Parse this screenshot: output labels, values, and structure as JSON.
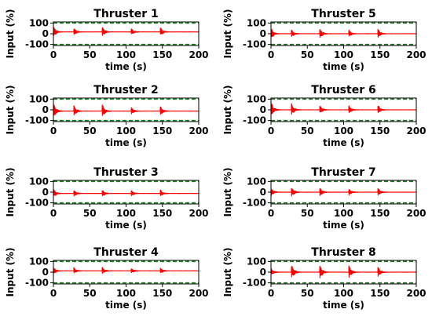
{
  "chart_data": [
    {
      "type": "line",
      "title": "Thruster 1",
      "xlabel": "time (s)",
      "ylabel": "Input (%)",
      "xlim": [
        0,
        200
      ],
      "ylim": [
        -110,
        110
      ],
      "xticks": [
        0,
        50,
        100,
        150,
        200
      ],
      "yticks": [
        100,
        0,
        -100
      ],
      "limits": [
        100,
        -100
      ],
      "baseline": 17,
      "series": [
        {
          "name": "",
          "events": [
            {
              "t": 0,
              "amp": 60
            },
            {
              "t": 28,
              "amp": 45
            },
            {
              "t": 67,
              "amp": 60
            },
            {
              "t": 107,
              "amp": 40
            },
            {
              "t": 147,
              "amp": 50
            }
          ]
        }
      ]
    },
    {
      "type": "line",
      "title": "Thruster 2",
      "xlabel": "time (s)",
      "ylabel": "Input (%)",
      "xlim": [
        0,
        200
      ],
      "ylim": [
        -110,
        110
      ],
      "xticks": [
        0,
        50,
        100,
        150,
        200
      ],
      "yticks": [
        100,
        0,
        -100
      ],
      "limits": [
        100,
        -100
      ],
      "baseline": -12,
      "series": [
        {
          "name": "",
          "events": [
            {
              "t": 0,
              "amp": 85
            },
            {
              "t": 28,
              "amp": 60
            },
            {
              "t": 67,
              "amp": 75
            },
            {
              "t": 107,
              "amp": 40
            },
            {
              "t": 147,
              "amp": 50
            }
          ]
        }
      ]
    },
    {
      "type": "line",
      "title": "Thruster 3",
      "xlabel": "time (s)",
      "ylabel": "Input (%)",
      "xlim": [
        0,
        200
      ],
      "ylim": [
        -110,
        110
      ],
      "xticks": [
        0,
        50,
        100,
        150,
        200
      ],
      "yticks": [
        100,
        0,
        -100
      ],
      "limits": [
        100,
        -100
      ],
      "baseline": -12,
      "series": [
        {
          "name": "",
          "events": [
            {
              "t": 0,
              "amp": 45
            },
            {
              "t": 28,
              "amp": 40
            },
            {
              "t": 67,
              "amp": 40
            },
            {
              "t": 107,
              "amp": 35
            },
            {
              "t": 147,
              "amp": 40
            }
          ]
        }
      ]
    },
    {
      "type": "line",
      "title": "Thruster 4",
      "xlabel": "time (s)",
      "ylabel": "Input (%)",
      "xlim": [
        0,
        200
      ],
      "ylim": [
        -110,
        110
      ],
      "xticks": [
        0,
        50,
        100,
        150,
        200
      ],
      "yticks": [
        100,
        0,
        -100
      ],
      "limits": [
        100,
        -100
      ],
      "baseline": 12,
      "series": [
        {
          "name": "",
          "events": [
            {
              "t": 0,
              "amp": 40
            },
            {
              "t": 28,
              "amp": 35
            },
            {
              "t": 67,
              "amp": 40
            },
            {
              "t": 107,
              "amp": 30
            },
            {
              "t": 147,
              "amp": 35
            }
          ]
        }
      ]
    },
    {
      "type": "line",
      "title": "Thruster 5",
      "xlabel": "time (s)",
      "ylabel": "Input (%)",
      "xlim": [
        0,
        200
      ],
      "ylim": [
        -110,
        110
      ],
      "xticks": [
        0,
        50,
        100,
        150,
        200
      ],
      "yticks": [
        100,
        0,
        -100
      ],
      "limits": [
        100,
        -100
      ],
      "baseline": 0,
      "series": [
        {
          "name": "",
          "events": [
            {
              "t": 0,
              "amp": 65
            },
            {
              "t": 28,
              "amp": 45
            },
            {
              "t": 67,
              "amp": 60
            },
            {
              "t": 107,
              "amp": 40
            },
            {
              "t": 147,
              "amp": 55
            }
          ]
        }
      ]
    },
    {
      "type": "line",
      "title": "Thruster 6",
      "xlabel": "time (s)",
      "ylabel": "Input (%)",
      "xlim": [
        0,
        200
      ],
      "ylim": [
        -110,
        110
      ],
      "xticks": [
        0,
        50,
        100,
        150,
        200
      ],
      "yticks": [
        100,
        0,
        -100
      ],
      "limits": [
        100,
        -100
      ],
      "baseline": 0,
      "series": [
        {
          "name": "",
          "events": [
            {
              "t": 0,
              "amp": 85
            },
            {
              "t": 28,
              "amp": 70
            },
            {
              "t": 67,
              "amp": 50
            },
            {
              "t": 107,
              "amp": 45
            },
            {
              "t": 147,
              "amp": 50
            }
          ]
        }
      ]
    },
    {
      "type": "line",
      "title": "Thruster 7",
      "xlabel": "time (s)",
      "ylabel": "Input (%)",
      "xlim": [
        0,
        200
      ],
      "ylim": [
        -110,
        110
      ],
      "xticks": [
        0,
        50,
        100,
        150,
        200
      ],
      "yticks": [
        100,
        0,
        -100
      ],
      "limits": [
        100,
        -100
      ],
      "baseline": 0,
      "series": [
        {
          "name": "",
          "events": [
            {
              "t": 0,
              "amp": 45
            },
            {
              "t": 28,
              "amp": 60
            },
            {
              "t": 67,
              "amp": 55
            },
            {
              "t": 107,
              "amp": 40
            },
            {
              "t": 147,
              "amp": 45
            }
          ]
        }
      ]
    },
    {
      "type": "line",
      "title": "Thruster 8",
      "xlabel": "time (s)",
      "ylabel": "Input (%)",
      "xlim": [
        0,
        200
      ],
      "ylim": [
        -110,
        110
      ],
      "xticks": [
        0,
        50,
        100,
        150,
        200
      ],
      "yticks": [
        100,
        0,
        -100
      ],
      "limits": [
        100,
        -100
      ],
      "baseline": 0,
      "series": [
        {
          "name": "",
          "events": [
            {
              "t": 0,
              "amp": 40
            },
            {
              "t": 28,
              "amp": 95
            },
            {
              "t": 67,
              "amp": 85
            },
            {
              "t": 107,
              "amp": 75
            },
            {
              "t": 147,
              "amp": 60
            }
          ]
        }
      ]
    }
  ],
  "colors": {
    "signal": "#ff0000",
    "limit": "#1a7a1a",
    "axes": "#000000"
  }
}
